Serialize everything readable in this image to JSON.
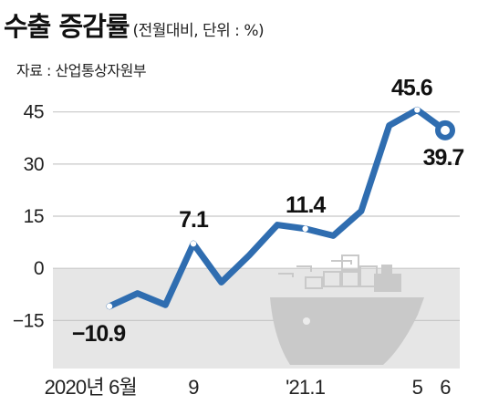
{
  "header": {
    "title": "수출 증감률",
    "subtitle": "(전월대비, 단위 : %)",
    "source": "자료 : 산업통상자원부"
  },
  "colors": {
    "line": "#2f6db0",
    "negative_band": "#e6e6e6",
    "grid": "#c8c8c8",
    "ship": "#c9c9c9"
  },
  "decoration": {
    "icon": "cargo-ship-icon"
  },
  "chart_data": {
    "type": "line",
    "x": [
      "2020-06",
      "2020-07",
      "2020-08",
      "2020-09",
      "2020-10",
      "2020-11",
      "2020-12",
      "2021-01",
      "2021-02",
      "2021-03",
      "2021-04",
      "2021-05",
      "2021-06"
    ],
    "values": [
      -10.9,
      -7.2,
      -10.5,
      7.1,
      -4.0,
      3.8,
      12.5,
      11.4,
      9.4,
      16.5,
      41.1,
      45.6,
      39.7
    ],
    "ylim": [
      -33,
      52
    ],
    "yticks": [
      45,
      30,
      15,
      0,
      -15
    ],
    "ytick_labels": [
      "45",
      "30",
      "15",
      "0",
      "−15"
    ],
    "xtick_labels": [
      {
        "index": 0,
        "text": "2020년 6월"
      },
      {
        "index": 3,
        "text": "9"
      },
      {
        "index": 7,
        "text": "'21.1"
      },
      {
        "index": 11,
        "text": "5"
      },
      {
        "index": 12,
        "text": "6"
      }
    ],
    "data_labels": [
      {
        "index": 0,
        "text": "−10.9"
      },
      {
        "index": 3,
        "text": "7.1"
      },
      {
        "index": 7,
        "text": "11.4"
      },
      {
        "index": 11,
        "text": "45.6"
      },
      {
        "index": 12,
        "text": "39.7"
      }
    ],
    "grid": true,
    "negative_region_shaded": true
  }
}
